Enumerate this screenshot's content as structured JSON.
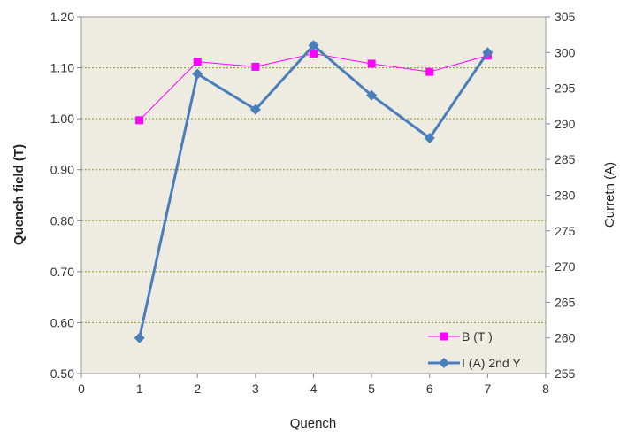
{
  "chart_data": {
    "type": "line",
    "x": [
      1,
      2,
      3,
      4,
      5,
      6,
      7
    ],
    "series": [
      {
        "name": "B (T )",
        "axis": "left",
        "color": "#ff00ff",
        "marker": "square",
        "values": [
          0.997,
          1.112,
          1.102,
          1.128,
          1.108,
          1.092,
          1.124
        ]
      },
      {
        "name": "I (A) 2nd Y",
        "axis": "right",
        "color": "#4a7ebb",
        "marker": "diamond",
        "values": [
          260,
          297,
          292,
          301,
          294,
          288,
          300
        ]
      }
    ],
    "xlabel": "Quench",
    "ylabel": "Quench field (T)",
    "y2label": "Curretn (A)",
    "xlim": [
      0,
      8
    ],
    "ylim": [
      0.5,
      1.2
    ],
    "y2lim": [
      255,
      305
    ],
    "x_ticks": [
      "0",
      "1",
      "2",
      "3",
      "4",
      "5",
      "6",
      "7",
      "8"
    ],
    "y_ticks": [
      "0.50",
      "0.60",
      "0.70",
      "0.80",
      "0.90",
      "1.00",
      "1.10",
      "1.20"
    ],
    "y2_ticks": [
      "255",
      "260",
      "265",
      "270",
      "275",
      "280",
      "285",
      "290",
      "295",
      "300",
      "305"
    ],
    "grid": "horizontal dotted",
    "plot_background": "#eeece1",
    "legend_position": "bottom-right"
  }
}
